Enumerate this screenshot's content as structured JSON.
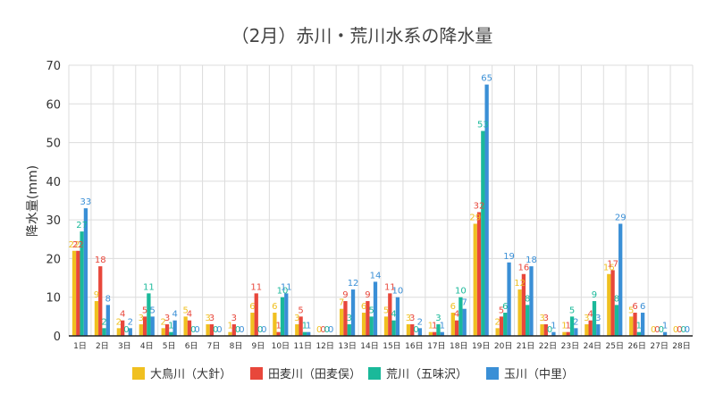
{
  "chart_data": {
    "type": "bar",
    "title": "（2月）赤川・荒川水系の降水量",
    "xlabel": "",
    "ylabel": "降水量(mm)",
    "ylim": [
      0,
      70
    ],
    "yticks": [
      0,
      10,
      20,
      30,
      40,
      50,
      60,
      70
    ],
    "grid": true,
    "legend_position": "bottom",
    "categories": [
      "1日",
      "2日",
      "3日",
      "4日",
      "5日",
      "6日",
      "7日",
      "8日",
      "9日",
      "10日",
      "11日",
      "12日",
      "13日",
      "14日",
      "15日",
      "16日",
      "17日",
      "18日",
      "19日",
      "20日",
      "21日",
      "22日",
      "23日",
      "24日",
      "25日",
      "26日",
      "27日",
      "28日"
    ],
    "series": [
      {
        "name": "大鳥川（大針）",
        "color": "#f0c020",
        "values": [
          22,
          9,
          2,
          3,
          2,
          5,
          3,
          1,
          6,
          6,
          3,
          0,
          7,
          6,
          5,
          3,
          1,
          6,
          29,
          2,
          12,
          3,
          1,
          3,
          16,
          5,
          0,
          0
        ]
      },
      {
        "name": "田麦川（田麦俣）",
        "color": "#e8473b",
        "values": [
          22,
          18,
          4,
          5,
          3,
          4,
          3,
          3,
          11,
          1,
          5,
          0,
          9,
          9,
          11,
          3,
          1,
          4,
          32,
          5,
          16,
          3,
          1,
          4,
          17,
          6,
          0,
          0
        ]
      },
      {
        "name": "荒川（五味沢）",
        "color": "#1ab99a",
        "values": [
          27,
          2,
          0,
          11,
          1,
          0,
          0,
          0,
          0,
          10,
          1,
          0,
          3,
          5,
          4,
          0,
          3,
          10,
          53,
          6,
          8,
          0,
          5,
          9,
          8,
          1,
          0,
          0
        ]
      },
      {
        "name": "玉川（中里）",
        "color": "#3a8fd6",
        "values": [
          33,
          8,
          2,
          5,
          4,
          0,
          0,
          0,
          0,
          11,
          1,
          0,
          12,
          14,
          10,
          2,
          1,
          7,
          65,
          19,
          18,
          1,
          2,
          3,
          29,
          6,
          1,
          0
        ]
      }
    ]
  }
}
